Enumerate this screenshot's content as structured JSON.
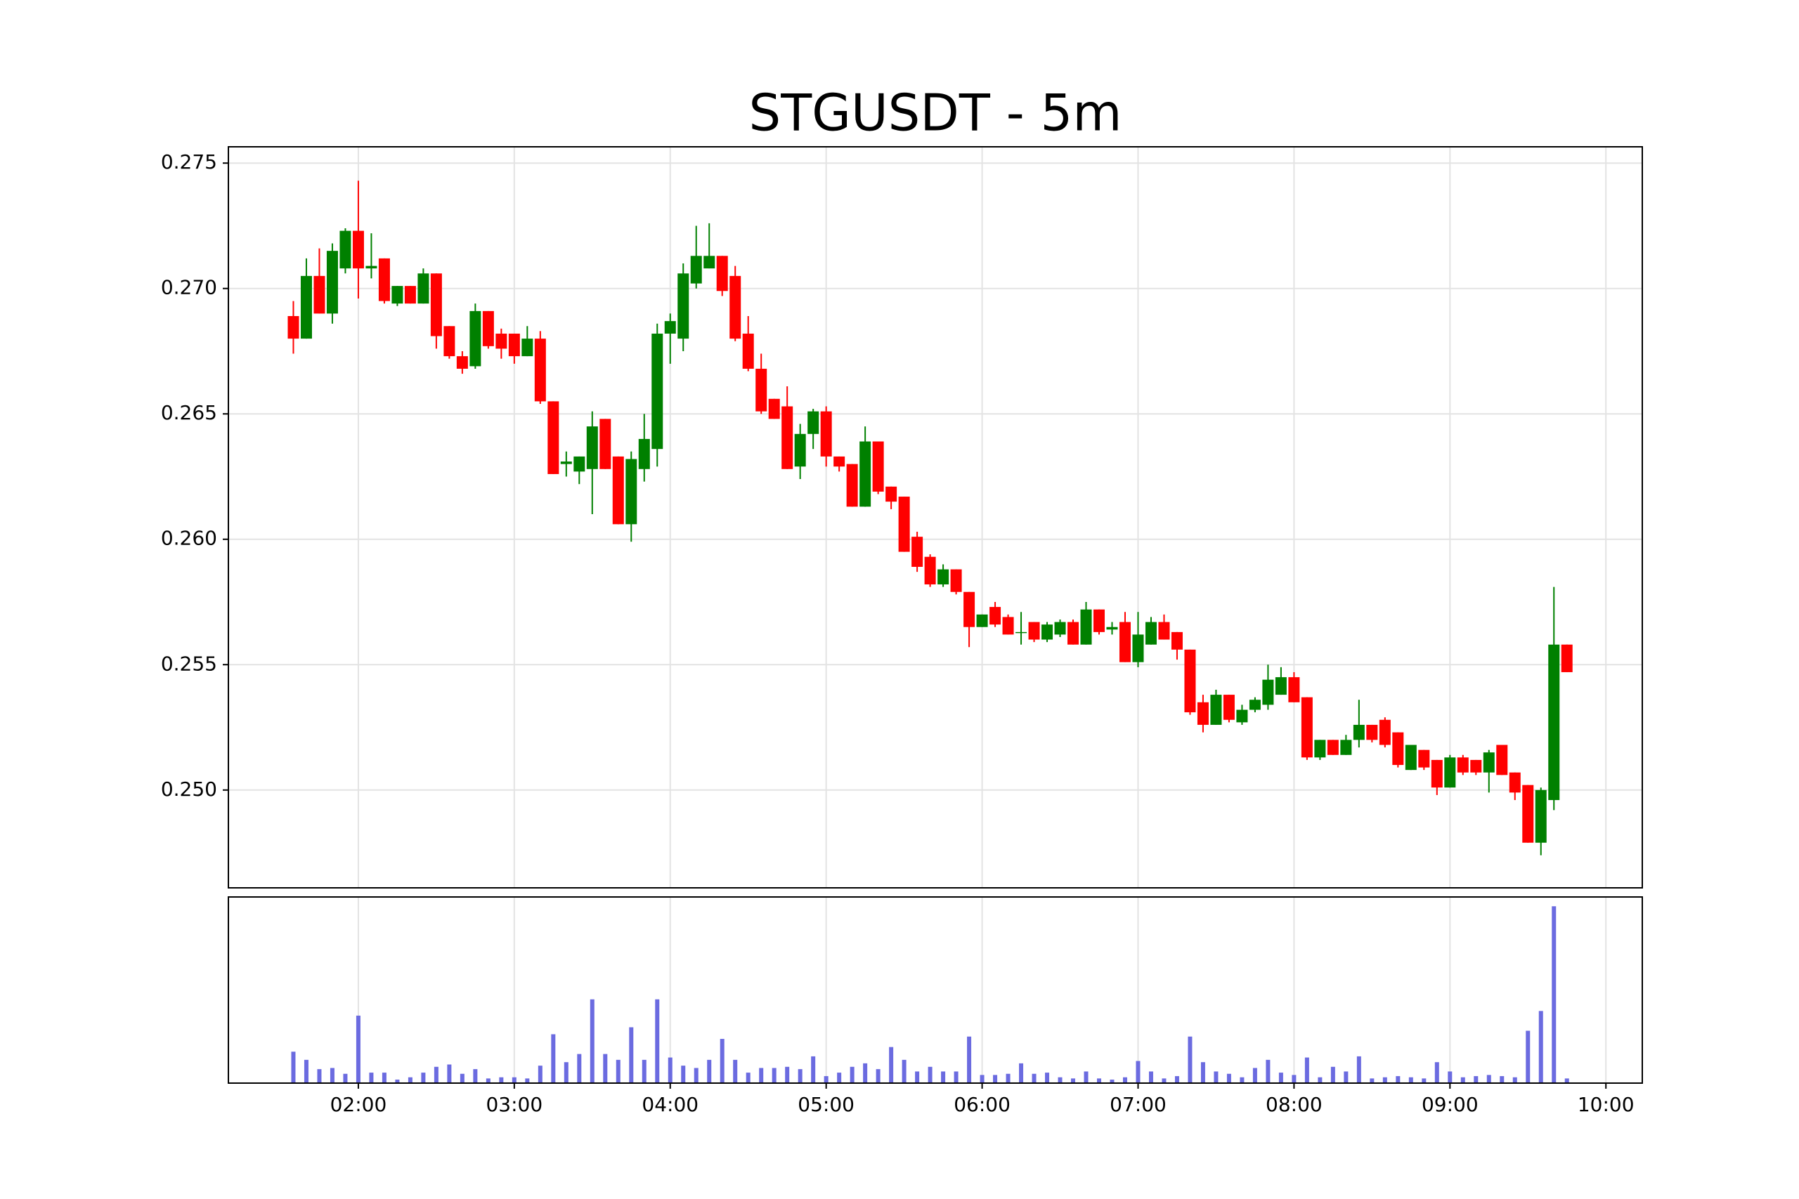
{
  "chart_data": {
    "type": "candlestick",
    "title": "STGUSDT - 5m",
    "x": [
      "01:35",
      "01:40",
      "01:45",
      "01:50",
      "01:55",
      "02:00",
      "02:05",
      "02:10",
      "02:15",
      "02:20",
      "02:25",
      "02:30",
      "02:35",
      "02:40",
      "02:45",
      "02:50",
      "02:55",
      "03:00",
      "03:05",
      "03:10",
      "03:15",
      "03:20",
      "03:25",
      "03:30",
      "03:35",
      "03:40",
      "03:45",
      "03:50",
      "03:55",
      "04:00",
      "04:05",
      "04:10",
      "04:15",
      "04:20",
      "04:25",
      "04:30",
      "04:35",
      "04:40",
      "04:45",
      "04:50",
      "04:55",
      "05:00",
      "05:05",
      "05:10",
      "05:15",
      "05:20",
      "05:25",
      "05:30",
      "05:35",
      "05:40",
      "05:45",
      "05:50",
      "05:55",
      "06:00",
      "06:05",
      "06:10",
      "06:15",
      "06:20",
      "06:25",
      "06:30",
      "06:35",
      "06:40",
      "06:45",
      "06:50",
      "06:55",
      "07:00",
      "07:05",
      "07:10",
      "07:15",
      "07:20",
      "07:25",
      "07:30",
      "07:35",
      "07:40",
      "07:45",
      "07:50",
      "07:55",
      "08:00",
      "08:05",
      "08:10",
      "08:15",
      "08:20",
      "08:25",
      "08:30",
      "08:35",
      "08:40",
      "08:45",
      "08:50",
      "08:55",
      "09:00",
      "09:05",
      "09:10",
      "09:15",
      "09:20",
      "09:25",
      "09:30",
      "09:35",
      "09:40",
      "09:45"
    ],
    "open": [
      0.2689,
      0.268,
      0.2705,
      0.269,
      0.2708,
      0.2723,
      0.2708,
      0.2712,
      0.2694,
      0.2701,
      0.2694,
      0.2706,
      0.2685,
      0.2673,
      0.2669,
      0.2691,
      0.2682,
      0.2682,
      0.2673,
      0.268,
      0.2655,
      0.263,
      0.2627,
      0.2628,
      0.2648,
      0.2633,
      0.2606,
      0.2628,
      0.2636,
      0.2682,
      0.268,
      0.2702,
      0.2708,
      0.2713,
      0.2705,
      0.2682,
      0.2668,
      0.2656,
      0.2653,
      0.2629,
      0.2642,
      0.2651,
      0.2633,
      0.263,
      0.2613,
      0.2639,
      0.2621,
      0.2617,
      0.2601,
      0.2593,
      0.2582,
      0.2588,
      0.2579,
      0.2565,
      0.2573,
      0.2569,
      0.2563,
      0.2567,
      0.256,
      0.2562,
      0.2567,
      0.2558,
      0.2572,
      0.2564,
      0.2567,
      0.2551,
      0.2558,
      0.2567,
      0.2563,
      0.2556,
      0.2535,
      0.2526,
      0.2538,
      0.2527,
      0.2532,
      0.2534,
      0.2538,
      0.2545,
      0.2537,
      0.2513,
      0.252,
      0.2514,
      0.252,
      0.2526,
      0.2528,
      0.2523,
      0.2508,
      0.2516,
      0.2512,
      0.2501,
      0.2513,
      0.2512,
      0.2507,
      0.2518,
      0.2507,
      0.2502,
      0.2479,
      0.2496,
      0.2558
    ],
    "high": [
      0.2695,
      0.2712,
      0.2716,
      0.2718,
      0.2724,
      0.2743,
      0.2722,
      0.2712,
      0.2701,
      0.2701,
      0.2708,
      0.2706,
      0.2685,
      0.2675,
      0.2694,
      0.2691,
      0.2684,
      0.2682,
      0.2685,
      0.2683,
      0.2655,
      0.2635,
      0.2633,
      0.2651,
      0.2648,
      0.2633,
      0.2635,
      0.265,
      0.2686,
      0.269,
      0.271,
      0.2725,
      0.2726,
      0.2713,
      0.2709,
      0.2689,
      0.2674,
      0.2656,
      0.2661,
      0.2646,
      0.2652,
      0.2653,
      0.2633,
      0.263,
      0.2645,
      0.2639,
      0.2621,
      0.2617,
      0.2603,
      0.2594,
      0.259,
      0.2588,
      0.2579,
      0.257,
      0.2575,
      0.257,
      0.2571,
      0.2567,
      0.2567,
      0.2568,
      0.2568,
      0.2575,
      0.2572,
      0.2567,
      0.2571,
      0.2571,
      0.2569,
      0.257,
      0.2563,
      0.2556,
      0.2538,
      0.254,
      0.2538,
      0.2534,
      0.2537,
      0.255,
      0.2549,
      0.2547,
      0.2537,
      0.252,
      0.252,
      0.2522,
      0.2536,
      0.2526,
      0.2529,
      0.2523,
      0.2518,
      0.2516,
      0.2512,
      0.2514,
      0.2514,
      0.2512,
      0.2516,
      0.2518,
      0.2507,
      0.2502,
      0.2501,
      0.2581,
      0.2558
    ],
    "low": [
      0.2674,
      0.268,
      0.269,
      0.2686,
      0.2706,
      0.2696,
      0.2704,
      0.2694,
      0.2693,
      0.2694,
      0.2694,
      0.2676,
      0.2672,
      0.2666,
      0.2668,
      0.2676,
      0.2672,
      0.267,
      0.2673,
      0.2654,
      0.2626,
      0.2625,
      0.2622,
      0.261,
      0.2628,
      0.2606,
      0.2599,
      0.2623,
      0.2629,
      0.267,
      0.2675,
      0.27,
      0.2708,
      0.2697,
      0.2679,
      0.2667,
      0.265,
      0.2648,
      0.2628,
      0.2624,
      0.2636,
      0.2629,
      0.2627,
      0.2613,
      0.2613,
      0.2618,
      0.2612,
      0.2595,
      0.2587,
      0.2581,
      0.2581,
      0.2578,
      0.2557,
      0.2565,
      0.2565,
      0.2562,
      0.2558,
      0.2559,
      0.2559,
      0.2561,
      0.2558,
      0.2558,
      0.2562,
      0.2562,
      0.2551,
      0.2549,
      0.2558,
      0.256,
      0.2552,
      0.253,
      0.2523,
      0.2526,
      0.2527,
      0.2526,
      0.2531,
      0.2532,
      0.2538,
      0.2535,
      0.2512,
      0.2512,
      0.2514,
      0.2514,
      0.2517,
      0.2519,
      0.2517,
      0.2509,
      0.2508,
      0.2508,
      0.2498,
      0.2501,
      0.2506,
      0.2506,
      0.2499,
      0.2506,
      0.2496,
      0.2479,
      0.2474,
      0.2492,
      0.2547
    ],
    "close": [
      0.268,
      0.2705,
      0.269,
      0.2715,
      0.2723,
      0.2708,
      0.2709,
      0.2695,
      0.2701,
      0.2694,
      0.2706,
      0.2681,
      0.2673,
      0.2668,
      0.2691,
      0.2677,
      0.2676,
      0.2673,
      0.268,
      0.2655,
      0.2626,
      0.2631,
      0.2633,
      0.2645,
      0.2628,
      0.2606,
      0.2632,
      0.264,
      0.2682,
      0.2687,
      0.2706,
      0.2713,
      0.2713,
      0.2699,
      0.268,
      0.2668,
      0.2651,
      0.2648,
      0.2628,
      0.2642,
      0.2651,
      0.2633,
      0.2629,
      0.2613,
      0.2639,
      0.2619,
      0.2615,
      0.2595,
      0.2589,
      0.2582,
      0.2588,
      0.2579,
      0.2565,
      0.257,
      0.2566,
      0.2562,
      0.2563,
      0.256,
      0.2566,
      0.2567,
      0.2558,
      0.2572,
      0.2563,
      0.2565,
      0.2551,
      0.2562,
      0.2567,
      0.256,
      0.2556,
      0.2531,
      0.2526,
      0.2538,
      0.2528,
      0.2532,
      0.2536,
      0.2544,
      0.2545,
      0.2535,
      0.2513,
      0.252,
      0.2514,
      0.252,
      0.2526,
      0.252,
      0.2518,
      0.251,
      0.2518,
      0.2509,
      0.2501,
      0.2513,
      0.2507,
      0.2507,
      0.2515,
      0.2506,
      0.2499,
      0.2479,
      0.25,
      0.2558,
      0.2547
    ],
    "volume": [
      27,
      20,
      12,
      13,
      8,
      58,
      9,
      9,
      3,
      5,
      9,
      14,
      16,
      8,
      12,
      4,
      5,
      5,
      4,
      15,
      42,
      18,
      25,
      72,
      25,
      20,
      48,
      20,
      72,
      22,
      15,
      13,
      20,
      38,
      20,
      9,
      13,
      13,
      14,
      12,
      23,
      6,
      9,
      14,
      17,
      12,
      31,
      20,
      10,
      14,
      10,
      10,
      40,
      7,
      7,
      8,
      17,
      8,
      9,
      5,
      4,
      10,
      4,
      3,
      5,
      19,
      10,
      4,
      6,
      40,
      18,
      10,
      8,
      5,
      13,
      20,
      9,
      7,
      22,
      5,
      14,
      10,
      23,
      4,
      5,
      6,
      5,
      4,
      18,
      10,
      5,
      6,
      7,
      6,
      5,
      45,
      62,
      152,
      4
    ],
    "up_color": "#008000",
    "down_color": "#ff0000",
    "volume_color": "#6b6be0",
    "xlim": [
      "01:10",
      "10:14"
    ],
    "xticks": [
      "02:00",
      "03:00",
      "04:00",
      "05:00",
      "06:00",
      "07:00",
      "08:00",
      "09:00",
      "10:00"
    ],
    "ylim": [
      0.2461,
      0.27565
    ],
    "yticks": [
      {
        "value": 0.25,
        "label": "0.250"
      },
      {
        "value": 0.255,
        "label": "0.255"
      },
      {
        "value": 0.26,
        "label": "0.260"
      },
      {
        "value": 0.265,
        "label": "0.265"
      },
      {
        "value": 0.27,
        "label": "0.270"
      },
      {
        "value": 0.275,
        "label": "0.275"
      }
    ],
    "volume_ylim": [
      0,
      160
    ],
    "grid": true
  }
}
